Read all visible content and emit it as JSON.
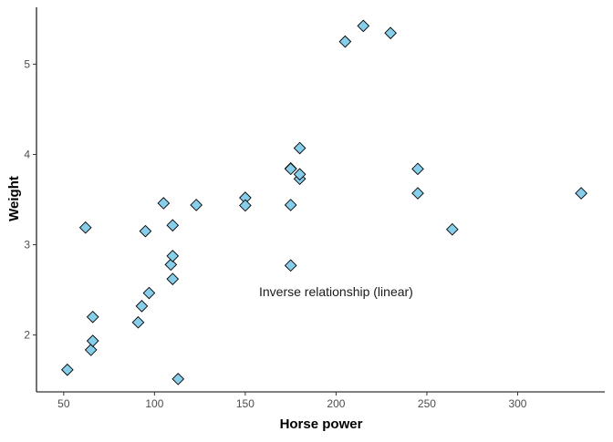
{
  "chart_data": {
    "type": "scatter",
    "title": "",
    "xlabel": "Horse power",
    "ylabel": "Weight",
    "xlim": [
      35,
      348
    ],
    "ylim": [
      1.37,
      5.63
    ],
    "xticks": [
      50,
      100,
      150,
      200,
      250,
      300
    ],
    "yticks": [
      2,
      3,
      4,
      5
    ],
    "grid": false,
    "marker": "diamond",
    "marker_color": "#87CEEB",
    "annotation": {
      "text": "Inverse relationship (linear)",
      "x": 200,
      "y": 2.48
    },
    "x": [
      52,
      62,
      65,
      66,
      66,
      91,
      93,
      95,
      97,
      105,
      109,
      110,
      110,
      110,
      113,
      123,
      150,
      150,
      175,
      175,
      175,
      175,
      180,
      180,
      180,
      205,
      215,
      230,
      245,
      245,
      264,
      335
    ],
    "y": [
      1.615,
      3.19,
      1.835,
      1.935,
      2.2,
      2.14,
      2.32,
      3.15,
      2.465,
      3.46,
      2.78,
      2.62,
      2.875,
      3.215,
      1.513,
      3.44,
      3.52,
      3.435,
      2.77,
      3.44,
      3.845,
      3.84,
      4.07,
      3.73,
      3.78,
      5.25,
      5.424,
      5.345,
      3.57,
      3.84,
      3.17,
      3.57
    ]
  }
}
